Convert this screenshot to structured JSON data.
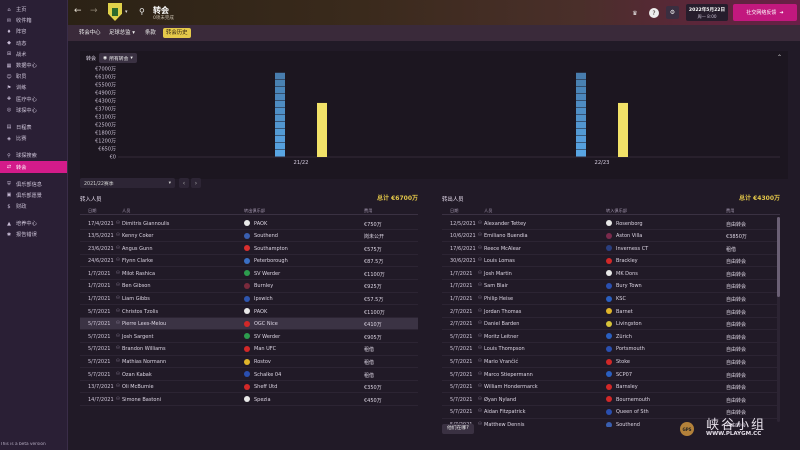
{
  "sidebar": {
    "items": [
      {
        "label": "主页",
        "icon": "home-icon"
      },
      {
        "label": "收件箱",
        "icon": "inbox-icon"
      },
      {
        "label": "阵容",
        "icon": "shirt-icon"
      },
      {
        "label": "动态",
        "icon": "dynamics-icon"
      },
      {
        "label": "战术",
        "icon": "tactics-icon"
      },
      {
        "label": "数据中心",
        "icon": "data-icon"
      },
      {
        "label": "职员",
        "icon": "staff-icon"
      },
      {
        "label": "训练",
        "icon": "training-icon"
      },
      {
        "label": "医疗中心",
        "icon": "medical-icon"
      },
      {
        "label": "球探中心",
        "icon": "scouting-icon"
      },
      {
        "label": "日程表",
        "icon": "calendar-icon"
      },
      {
        "label": "比赛",
        "icon": "match-icon"
      },
      {
        "label": "球探搜索",
        "icon": "search-icon"
      },
      {
        "label": "转会",
        "icon": "transfer-icon",
        "active": true
      },
      {
        "label": "俱乐部信息",
        "icon": "club-icon"
      },
      {
        "label": "俱乐部愿景",
        "icon": "vision-icon"
      },
      {
        "label": "财政",
        "icon": "finance-icon"
      },
      {
        "label": "培养中心",
        "icon": "development-icon"
      },
      {
        "label": "报告错误",
        "icon": "bug-icon"
      }
    ],
    "beta_text": "This is a beta version"
  },
  "header": {
    "title": "转会",
    "subtitle": "0项未完成",
    "date": "2022年5月22日",
    "time": "周一 8:00",
    "continue_label": "社交网络反馈",
    "help": "?"
  },
  "tabs": [
    {
      "label": "转会中心",
      "active": false
    },
    {
      "label": "足球总监 ▾",
      "active": false
    },
    {
      "label": "条款",
      "active": false
    },
    {
      "label": "转会历史",
      "active": true
    }
  ],
  "chart_panel": {
    "label": "转会",
    "filter": "所有转会"
  },
  "chart_data": {
    "type": "bar",
    "categories": [
      "21/22",
      "22/23"
    ],
    "series": [
      {
        "name": "转入",
        "color": "#5aa8e8",
        "values": [
          6700,
          6700
        ]
      },
      {
        "name": "转出",
        "color": "#f2e268",
        "values": [
          4300,
          4300
        ]
      }
    ],
    "ytick_labels": [
      "€7000万",
      "€6100万",
      "€5500万",
      "€4900万",
      "€4300万",
      "€3700万",
      "€3100万",
      "€2500万",
      "€1800万",
      "€1200万",
      "€650万",
      "€0"
    ],
    "ylim": [
      0,
      7000
    ],
    "grid": false,
    "bar_segments": 12
  },
  "transfers_in": {
    "season": "2021/22赛季",
    "title": "转入人员",
    "total": "总计 €6700万",
    "headers": {
      "date": "日期",
      "name": "人员",
      "club": "转出俱乐部",
      "fee": "费用"
    },
    "rows": [
      {
        "date": "17/4/2021",
        "name": "Dimitris Giannoulis",
        "club": "PAOK",
        "fee": "€750万",
        "badge": "#e8e8e8"
      },
      {
        "date": "13/5/2021",
        "name": "Kenny Coker",
        "club": "Southend",
        "fee": "岗未公开",
        "badge": "#3a5fb0"
      },
      {
        "date": "23/6/2021",
        "name": "Angus Gunn",
        "club": "Southampton",
        "fee": "€575万",
        "badge": "#d92e2e"
      },
      {
        "date": "24/6/2021",
        "name": "Flynn Clarke",
        "club": "Peterborough",
        "fee": "€87.5万",
        "badge": "#3a6fc4"
      },
      {
        "date": "1/7/2021",
        "name": "Milot Rashica",
        "club": "SV Werder",
        "fee": "€1100万",
        "badge": "#2d9c4e"
      },
      {
        "date": "1/7/2021",
        "name": "Ben Gibson",
        "club": "Burnley",
        "fee": "€925万",
        "badge": "#7a2a3c"
      },
      {
        "date": "1/7/2021",
        "name": "Liam Gibbs",
        "club": "Ipswich",
        "fee": "€57.5万",
        "badge": "#2e56b0"
      },
      {
        "date": "5/7/2021",
        "name": "Christos Tzolis",
        "club": "PAOK",
        "fee": "€1100万",
        "badge": "#e8e8e8"
      },
      {
        "date": "5/7/2021",
        "name": "Pierre Lees-Melou",
        "club": "OGC Nice",
        "fee": "€410万",
        "badge": "#d22828",
        "highlight": true
      },
      {
        "date": "5/7/2021",
        "name": "Josh Sargent",
        "club": "SV Werder",
        "fee": "€905万",
        "badge": "#2d9c4e"
      },
      {
        "date": "5/7/2021",
        "name": "Brandon Williams",
        "club": "Man UFC",
        "fee": "租借",
        "badge": "#d22828"
      },
      {
        "date": "5/7/2021",
        "name": "Mathias Normann",
        "club": "Rostov",
        "fee": "租借",
        "badge": "#e0b52a"
      },
      {
        "date": "5/7/2021",
        "name": "Ozan Kabak",
        "club": "Schalke 04",
        "fee": "租借",
        "badge": "#2a4fb0"
      },
      {
        "date": "13/7/2021",
        "name": "Oli McBurnie",
        "club": "Sheff Utd",
        "fee": "€350万",
        "badge": "#d22828"
      },
      {
        "date": "14/7/2021",
        "name": "Simone Bastoni",
        "club": "Spezia",
        "fee": "€450万",
        "badge": "#e8e8e8"
      }
    ]
  },
  "transfers_out": {
    "title": "转出人员",
    "total": "总计 €4300万",
    "headers": {
      "date": "日期",
      "name": "人员",
      "club": "转入俱乐部",
      "fee": "费用"
    },
    "where_button": "他们在哪?",
    "rows": [
      {
        "date": "12/5/2021",
        "name": "Alexander Tettey",
        "club": "Rosenborg",
        "fee": "自由转会",
        "badge": "#e8e8e8"
      },
      {
        "date": "10/6/2021",
        "name": "Emiliano Buendia",
        "club": "Aston Villa",
        "fee": "€3850万",
        "badge": "#7a2a4c"
      },
      {
        "date": "17/6/2021",
        "name": "Reece McAlear",
        "club": "Inverness CT",
        "fee": "租借",
        "badge": "#2a3f80"
      },
      {
        "date": "30/6/2021",
        "name": "Louis Lomas",
        "club": "Brackley",
        "fee": "自由转会",
        "badge": "#d22828"
      },
      {
        "date": "1/7/2021",
        "name": "Josh Martin",
        "club": "MK Dons",
        "fee": "自由转会",
        "badge": "#e8e8e8"
      },
      {
        "date": "1/7/2021",
        "name": "Sam Blair",
        "club": "Bury Town",
        "fee": "自由转会",
        "badge": "#2a4fb0"
      },
      {
        "date": "1/7/2021",
        "name": "Philip Heise",
        "club": "KSC",
        "fee": "自由转会",
        "badge": "#2a5fc0"
      },
      {
        "date": "2/7/2021",
        "name": "Jordan Thomas",
        "club": "Barnet",
        "fee": "自由转会",
        "badge": "#e0b52a"
      },
      {
        "date": "2/7/2021",
        "name": "Daniel Barden",
        "club": "Livingston",
        "fee": "自由转会",
        "badge": "#d6c23a"
      },
      {
        "date": "5/7/2021",
        "name": "Moritz Leitner",
        "club": "Zürich",
        "fee": "自由转会",
        "badge": "#2a5fc0"
      },
      {
        "date": "5/7/2021",
        "name": "Louis Thompson",
        "club": "Portsmouth",
        "fee": "自由转会",
        "badge": "#2a4fb0"
      },
      {
        "date": "5/7/2021",
        "name": "Mario Vrančić",
        "club": "Stoke",
        "fee": "自由转会",
        "badge": "#d22828"
      },
      {
        "date": "5/7/2021",
        "name": "Marco Stiepermann",
        "club": "SCP07",
        "fee": "自由转会",
        "badge": "#2a5fc0"
      },
      {
        "date": "5/7/2021",
        "name": "William Hondermarck",
        "club": "Barnsley",
        "fee": "自由转会",
        "badge": "#d22828"
      },
      {
        "date": "5/7/2021",
        "name": "Øyan Nyland",
        "club": "Bournemouth",
        "fee": "自由转会",
        "badge": "#d22828"
      },
      {
        "date": "5/7/2021",
        "name": "Aidan Fitzpatrick",
        "club": "Queen of Sth",
        "fee": "自由转会",
        "badge": "#2a4fb0"
      },
      {
        "date": "5/7/2021",
        "name": "Matthew Dennis",
        "club": "Southend",
        "fee": "自由转会",
        "badge": "#3a5fb0"
      }
    ]
  },
  "watermark": {
    "chinese": "峡谷小组",
    "url": "WWW.PLAYGM.CC",
    "logo": "GPS"
  }
}
